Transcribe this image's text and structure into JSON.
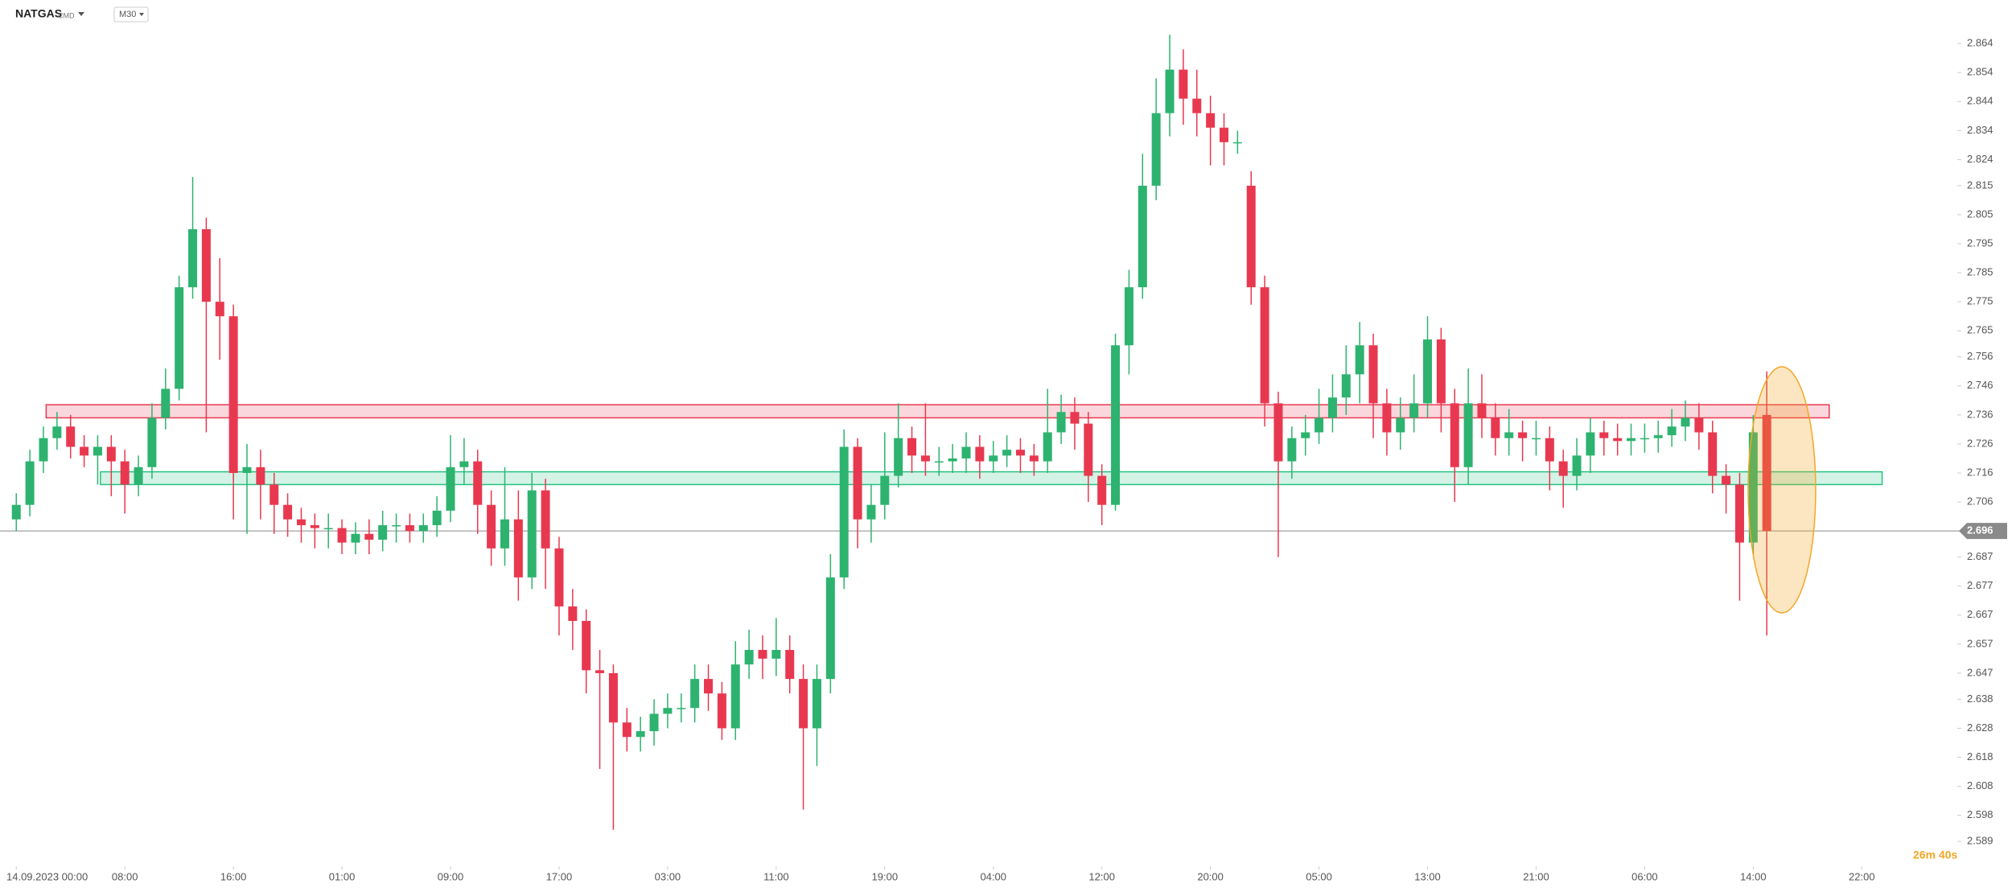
{
  "chart_data": {
    "type": "candlestick",
    "symbol": "NATGAS",
    "market": "CMD",
    "interval": "M30",
    "countdown": "26m 40s",
    "up_color": "#2db36f",
    "down_color": "#e8384f",
    "xlim": [
      -1.2,
      142.8
    ],
    "ylim": [
      2.581,
      2.879
    ],
    "xticks": [
      {
        "value": 0,
        "label": "14.09.2023 00:00"
      },
      {
        "value": 8,
        "label": "08:00"
      },
      {
        "value": 16,
        "label": "16:00"
      },
      {
        "value": 24,
        "label": "01:00"
      },
      {
        "value": 32,
        "label": "09:00"
      },
      {
        "value": 40,
        "label": "17:00"
      },
      {
        "value": 48,
        "label": "03:00"
      },
      {
        "value": 56,
        "label": "11:00"
      },
      {
        "value": 64,
        "label": "19:00"
      },
      {
        "value": 72,
        "label": "04:00"
      },
      {
        "value": 80,
        "label": "12:00"
      },
      {
        "value": 88,
        "label": "20:00"
      },
      {
        "value": 96,
        "label": "05:00"
      },
      {
        "value": 104,
        "label": "13:00"
      },
      {
        "value": 112,
        "label": "21:00"
      },
      {
        "value": 120,
        "label": "06:00"
      },
      {
        "value": 128,
        "label": "14:00"
      },
      {
        "value": 136,
        "label": "22:00"
      }
    ],
    "yticks": [
      2.864,
      2.854,
      2.844,
      2.834,
      2.824,
      2.815,
      2.805,
      2.795,
      2.785,
      2.775,
      2.765,
      2.756,
      2.746,
      2.736,
      2.726,
      2.716,
      2.706,
      2.687,
      2.677,
      2.667,
      2.657,
      2.647,
      2.638,
      2.628,
      2.618,
      2.608,
      2.598,
      2.589
    ],
    "last_price": 2.696,
    "zones": [
      {
        "color": "#e8384f",
        "range": [
          2.735,
          2.7395
        ],
        "x": [
          2.2,
          133.6
        ]
      },
      {
        "color": "#26c281",
        "range": [
          2.712,
          2.7164
        ],
        "x": [
          6.2,
          137.5
        ]
      }
    ],
    "open": [
      2.7,
      2.705,
      2.72,
      2.728,
      2.732,
      2.725,
      2.722,
      2.725,
      2.72,
      2.712,
      2.718,
      2.735,
      2.745,
      2.78,
      2.8,
      2.775,
      2.77,
      2.716,
      2.718,
      2.712,
      2.705,
      2.7,
      2.698,
      2.697,
      2.697,
      2.692,
      2.695,
      2.693,
      2.698,
      2.698,
      2.696,
      2.698,
      2.703,
      2.718,
      2.72,
      2.705,
      2.69,
      2.7,
      2.68,
      2.71,
      2.69,
      2.67,
      2.665,
      2.648,
      2.647,
      2.63,
      2.625,
      2.627,
      2.633,
      2.635,
      2.635,
      2.645,
      2.64,
      2.628,
      2.65,
      2.655,
      2.652,
      2.655,
      2.645,
      2.628,
      2.645,
      2.68,
      2.725,
      2.7,
      2.705,
      2.715,
      2.728,
      2.722,
      2.72,
      2.72,
      2.721,
      2.725,
      2.72,
      2.722,
      2.724,
      2.722,
      2.72,
      2.73,
      2.737,
      2.733,
      2.715,
      2.705,
      2.76,
      2.78,
      2.815,
      2.84,
      2.855,
      2.845,
      2.84,
      2.835,
      2.83,
      2.815,
      2.78,
      2.74,
      2.72,
      2.728,
      2.73,
      2.735,
      2.742,
      2.75,
      2.76,
      2.74,
      2.73,
      2.735,
      2.74,
      2.762,
      2.74,
      2.718,
      2.74,
      2.735,
      2.728,
      2.73,
      2.728,
      2.728,
      2.72,
      2.715,
      2.722,
      2.73,
      2.728,
      2.727,
      2.728,
      2.728,
      2.729,
      2.732,
      2.735,
      2.73,
      2.715,
      2.712,
      2.692,
      2.736
    ],
    "high": [
      2.709,
      2.724,
      2.732,
      2.737,
      2.736,
      2.729,
      2.729,
      2.729,
      2.724,
      2.722,
      2.74,
      2.752,
      2.784,
      2.818,
      2.804,
      2.79,
      2.774,
      2.726,
      2.724,
      2.716,
      2.709,
      2.704,
      2.702,
      2.702,
      2.7,
      2.699,
      2.7,
      2.703,
      2.702,
      2.702,
      2.702,
      2.708,
      2.729,
      2.728,
      2.724,
      2.71,
      2.718,
      2.71,
      2.716,
      2.714,
      2.694,
      2.676,
      2.669,
      2.655,
      2.65,
      2.635,
      2.632,
      2.638,
      2.64,
      2.64,
      2.65,
      2.65,
      2.644,
      2.658,
      2.662,
      2.66,
      2.666,
      2.66,
      2.65,
      2.65,
      2.688,
      2.731,
      2.728,
      2.712,
      2.73,
      2.74,
      2.732,
      2.74,
      2.725,
      2.726,
      2.73,
      2.729,
      2.727,
      2.729,
      2.728,
      2.726,
      2.745,
      2.743,
      2.742,
      2.737,
      2.719,
      2.764,
      2.786,
      2.826,
      2.852,
      2.867,
      2.862,
      2.855,
      2.846,
      2.84,
      2.834,
      2.82,
      2.784,
      2.744,
      2.732,
      2.736,
      2.745,
      2.75,
      2.76,
      2.768,
      2.764,
      2.745,
      2.742,
      2.75,
      2.77,
      2.766,
      2.745,
      2.752,
      2.75,
      2.74,
      2.738,
      2.734,
      2.734,
      2.732,
      2.724,
      2.728,
      2.735,
      2.734,
      2.733,
      2.733,
      2.733,
      2.734,
      2.738,
      2.741,
      2.74,
      2.734,
      2.719,
      2.716,
      2.736,
      2.751
    ],
    "low": [
      2.696,
      2.701,
      2.716,
      2.724,
      2.721,
      2.718,
      2.712,
      2.708,
      2.702,
      2.708,
      2.714,
      2.731,
      2.741,
      2.776,
      2.73,
      2.755,
      2.7,
      2.695,
      2.7,
      2.695,
      2.694,
      2.692,
      2.69,
      2.69,
      2.688,
      2.688,
      2.688,
      2.689,
      2.692,
      2.692,
      2.692,
      2.694,
      2.699,
      2.712,
      2.695,
      2.684,
      2.684,
      2.672,
      2.676,
      2.676,
      2.66,
      2.655,
      2.64,
      2.614,
      2.593,
      2.62,
      2.62,
      2.622,
      2.628,
      2.63,
      2.63,
      2.634,
      2.624,
      2.624,
      2.645,
      2.645,
      2.646,
      2.64,
      2.6,
      2.615,
      2.64,
      2.676,
      2.69,
      2.692,
      2.7,
      2.711,
      2.716,
      2.715,
      2.715,
      2.716,
      2.716,
      2.714,
      2.716,
      2.718,
      2.716,
      2.715,
      2.716,
      2.726,
      2.724,
      2.706,
      2.698,
      2.703,
      2.75,
      2.776,
      2.81,
      2.832,
      2.836,
      2.832,
      2.822,
      2.822,
      2.826,
      2.774,
      2.732,
      2.687,
      2.714,
      2.722,
      2.726,
      2.73,
      2.736,
      2.74,
      2.728,
      2.722,
      2.724,
      2.73,
      2.735,
      2.73,
      2.706,
      2.712,
      2.728,
      2.722,
      2.722,
      2.72,
      2.722,
      2.71,
      2.704,
      2.71,
      2.716,
      2.722,
      2.722,
      2.722,
      2.723,
      2.723,
      2.725,
      2.727,
      2.724,
      2.709,
      2.702,
      2.672,
      2.688,
      2.66
    ],
    "close": [
      2.705,
      2.72,
      2.728,
      2.732,
      2.725,
      2.722,
      2.725,
      2.72,
      2.712,
      2.718,
      2.735,
      2.745,
      2.78,
      2.8,
      2.775,
      2.77,
      2.716,
      2.718,
      2.712,
      2.705,
      2.7,
      2.698,
      2.697,
      2.697,
      2.692,
      2.695,
      2.693,
      2.698,
      2.698,
      2.696,
      2.698,
      2.703,
      2.718,
      2.72,
      2.705,
      2.69,
      2.7,
      2.68,
      2.71,
      2.69,
      2.67,
      2.665,
      2.648,
      2.647,
      2.63,
      2.625,
      2.627,
      2.633,
      2.635,
      2.635,
      2.645,
      2.64,
      2.628,
      2.65,
      2.655,
      2.652,
      2.655,
      2.645,
      2.628,
      2.645,
      2.68,
      2.725,
      2.7,
      2.705,
      2.715,
      2.728,
      2.722,
      2.72,
      2.72,
      2.721,
      2.725,
      2.72,
      2.722,
      2.724,
      2.722,
      2.72,
      2.73,
      2.737,
      2.733,
      2.715,
      2.705,
      2.76,
      2.78,
      2.815,
      2.84,
      2.855,
      2.845,
      2.84,
      2.835,
      2.83,
      2.83,
      2.78,
      2.74,
      2.72,
      2.728,
      2.73,
      2.735,
      2.742,
      2.75,
      2.76,
      2.74,
      2.73,
      2.735,
      2.74,
      2.762,
      2.74,
      2.718,
      2.74,
      2.735,
      2.728,
      2.73,
      2.728,
      2.728,
      2.72,
      2.715,
      2.722,
      2.73,
      2.728,
      2.727,
      2.728,
      2.728,
      2.729,
      2.732,
      2.735,
      2.73,
      2.715,
      2.712,
      2.692,
      2.73,
      2.696
    ]
  }
}
